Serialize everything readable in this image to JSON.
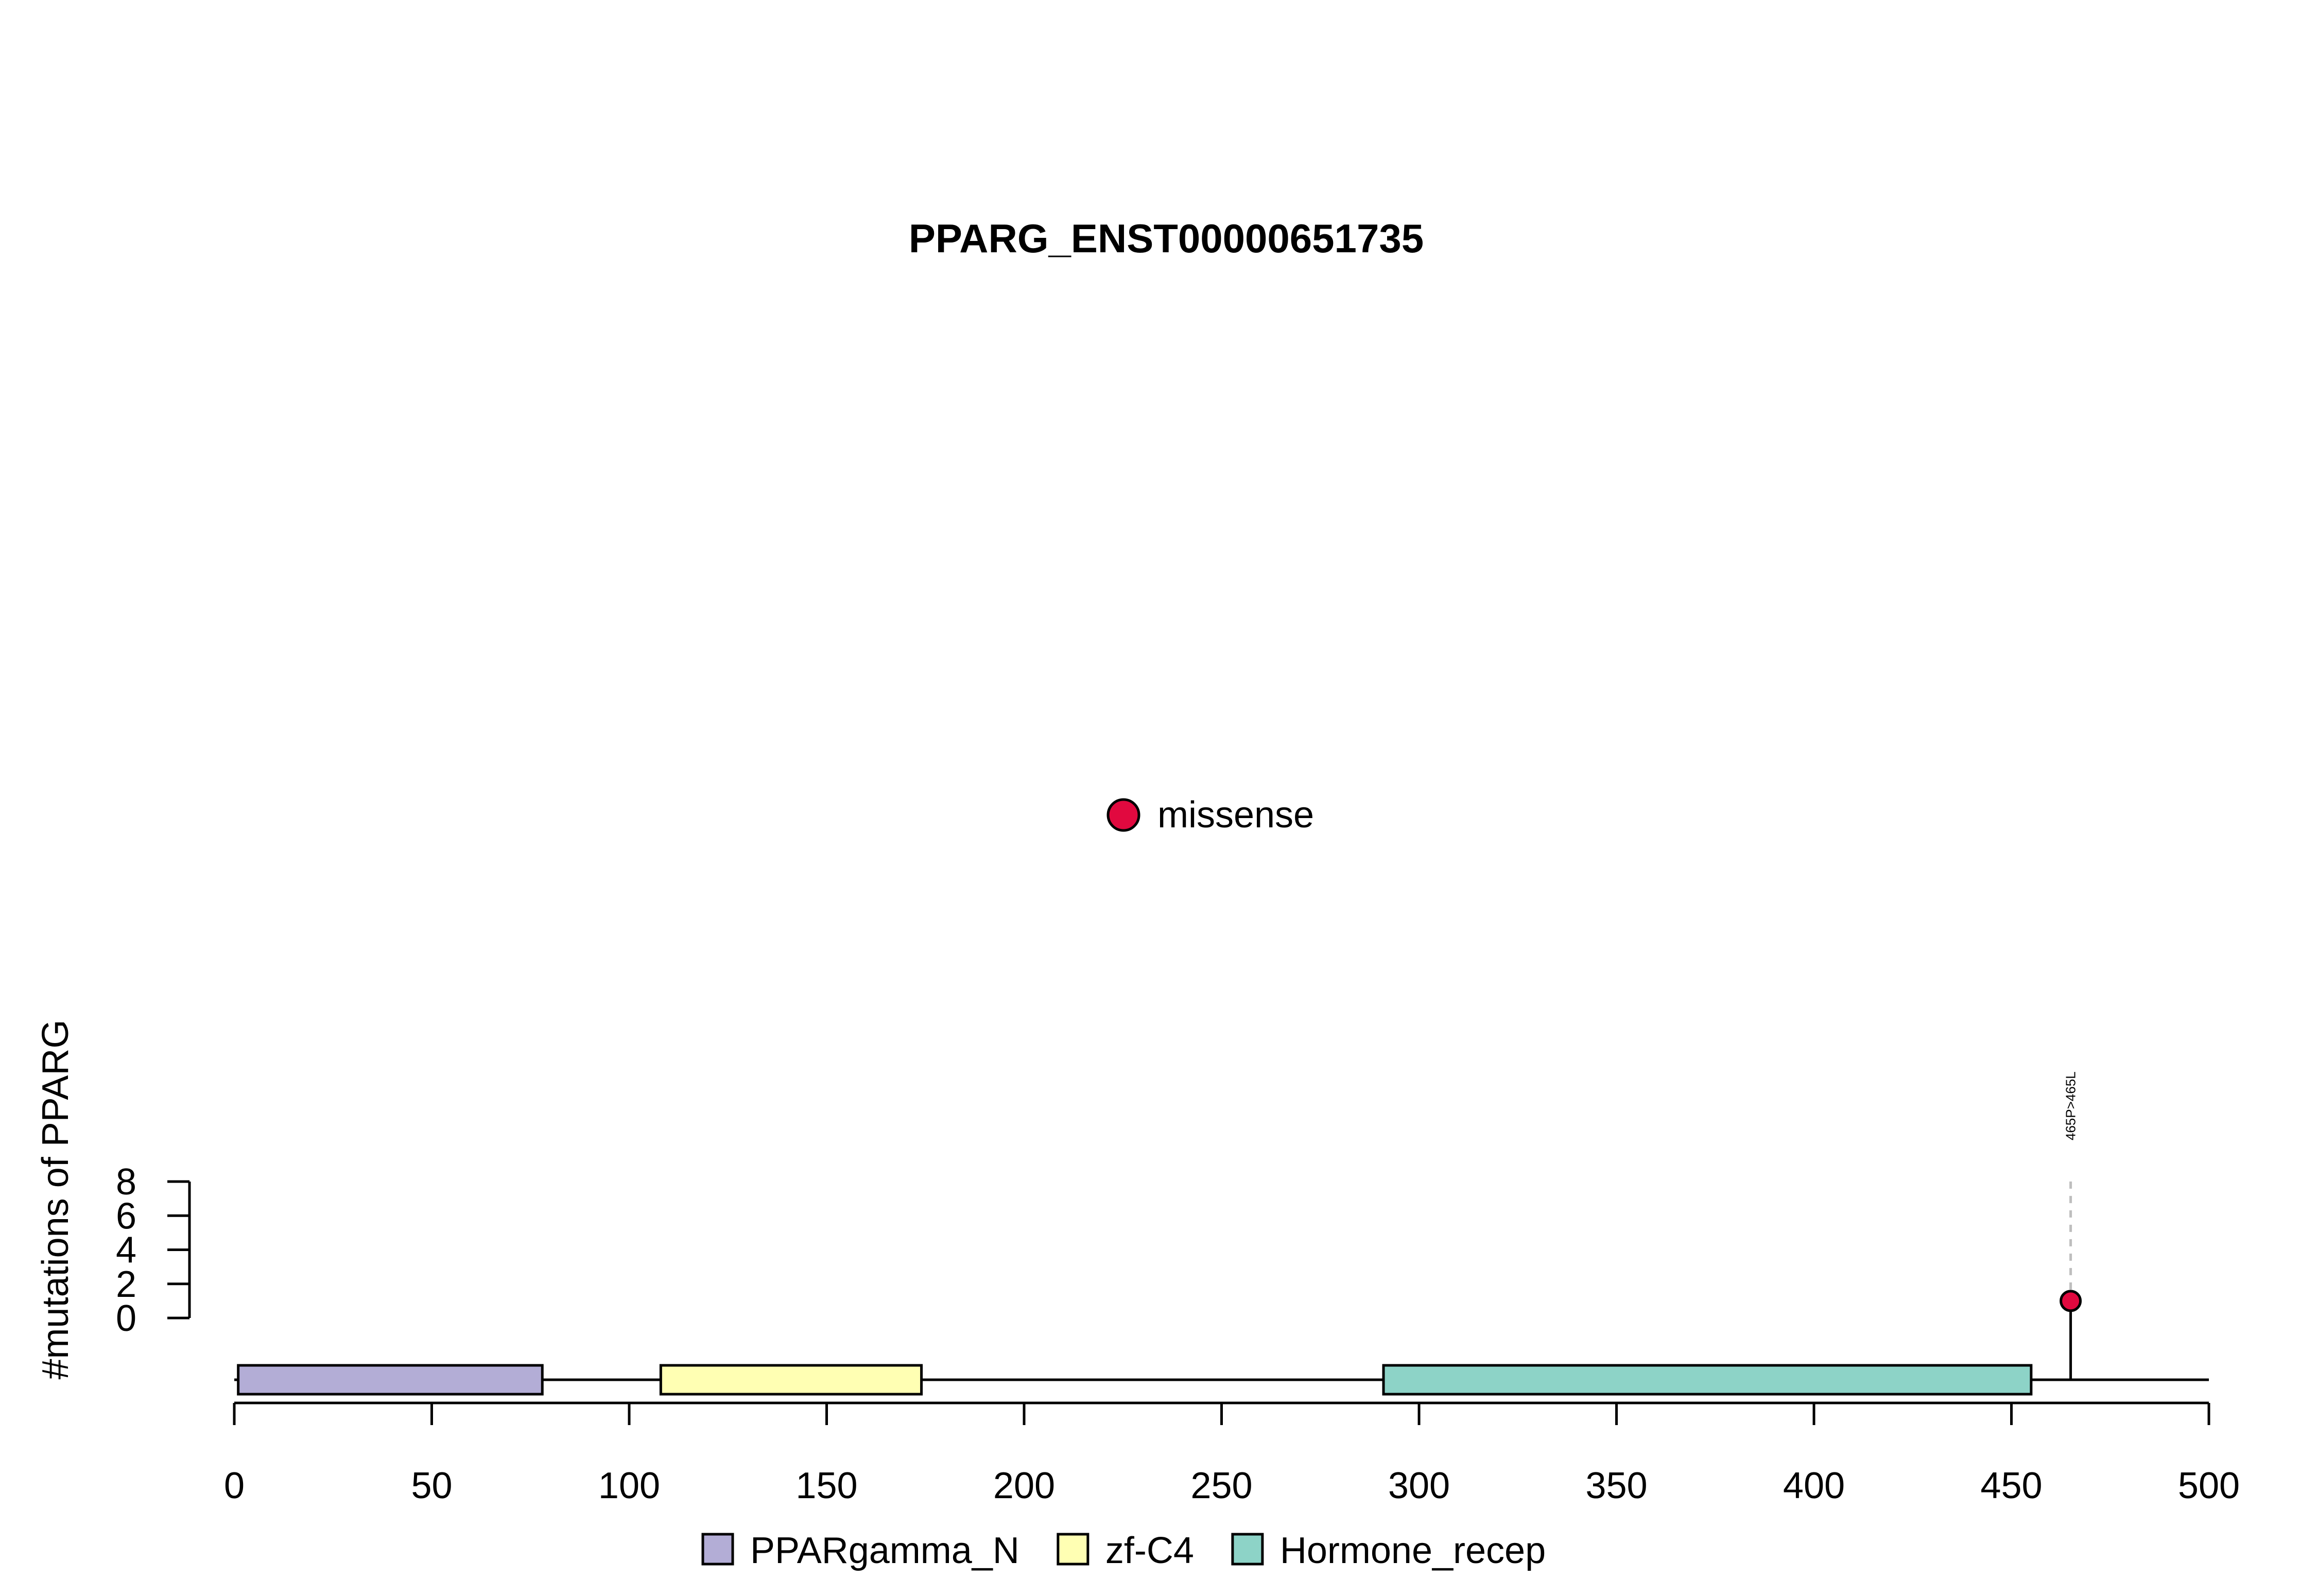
{
  "chart_data": {
    "type": "lollipop",
    "title": "PPARG_ENST00000651735",
    "ylabel": "#mutations of PPARG",
    "xlabel": "",
    "xlim": [
      0,
      500
    ],
    "x_ticks": [
      0,
      50,
      100,
      150,
      200,
      250,
      300,
      350,
      400,
      450,
      500
    ],
    "ylim": [
      0,
      8
    ],
    "y_ticks": [
      0,
      2,
      4,
      6,
      8
    ],
    "protein_length": 500,
    "domains": [
      {
        "name": "PPARgamma_N",
        "start": 1,
        "end": 78,
        "color": "#B3ADD6"
      },
      {
        "name": "zf-C4",
        "start": 108,
        "end": 174,
        "color": "#FFFFB3"
      },
      {
        "name": "Hormone_recep",
        "start": 291,
        "end": 455,
        "color": "#8DD3C7"
      }
    ],
    "mutations": [
      {
        "position": 465,
        "count": 1,
        "label": "465P>465L",
        "type": "missense",
        "color": "#E1093F"
      }
    ],
    "mutation_legend": [
      {
        "label": "missense",
        "color": "#E1093F"
      }
    ],
    "domain_legend": [
      {
        "label": "PPARgamma_N",
        "color": "#B3ADD6"
      },
      {
        "label": "zf-C4",
        "color": "#FFFFB3"
      },
      {
        "label": "Hormone_recep",
        "color": "#8DD3C7"
      }
    ]
  }
}
